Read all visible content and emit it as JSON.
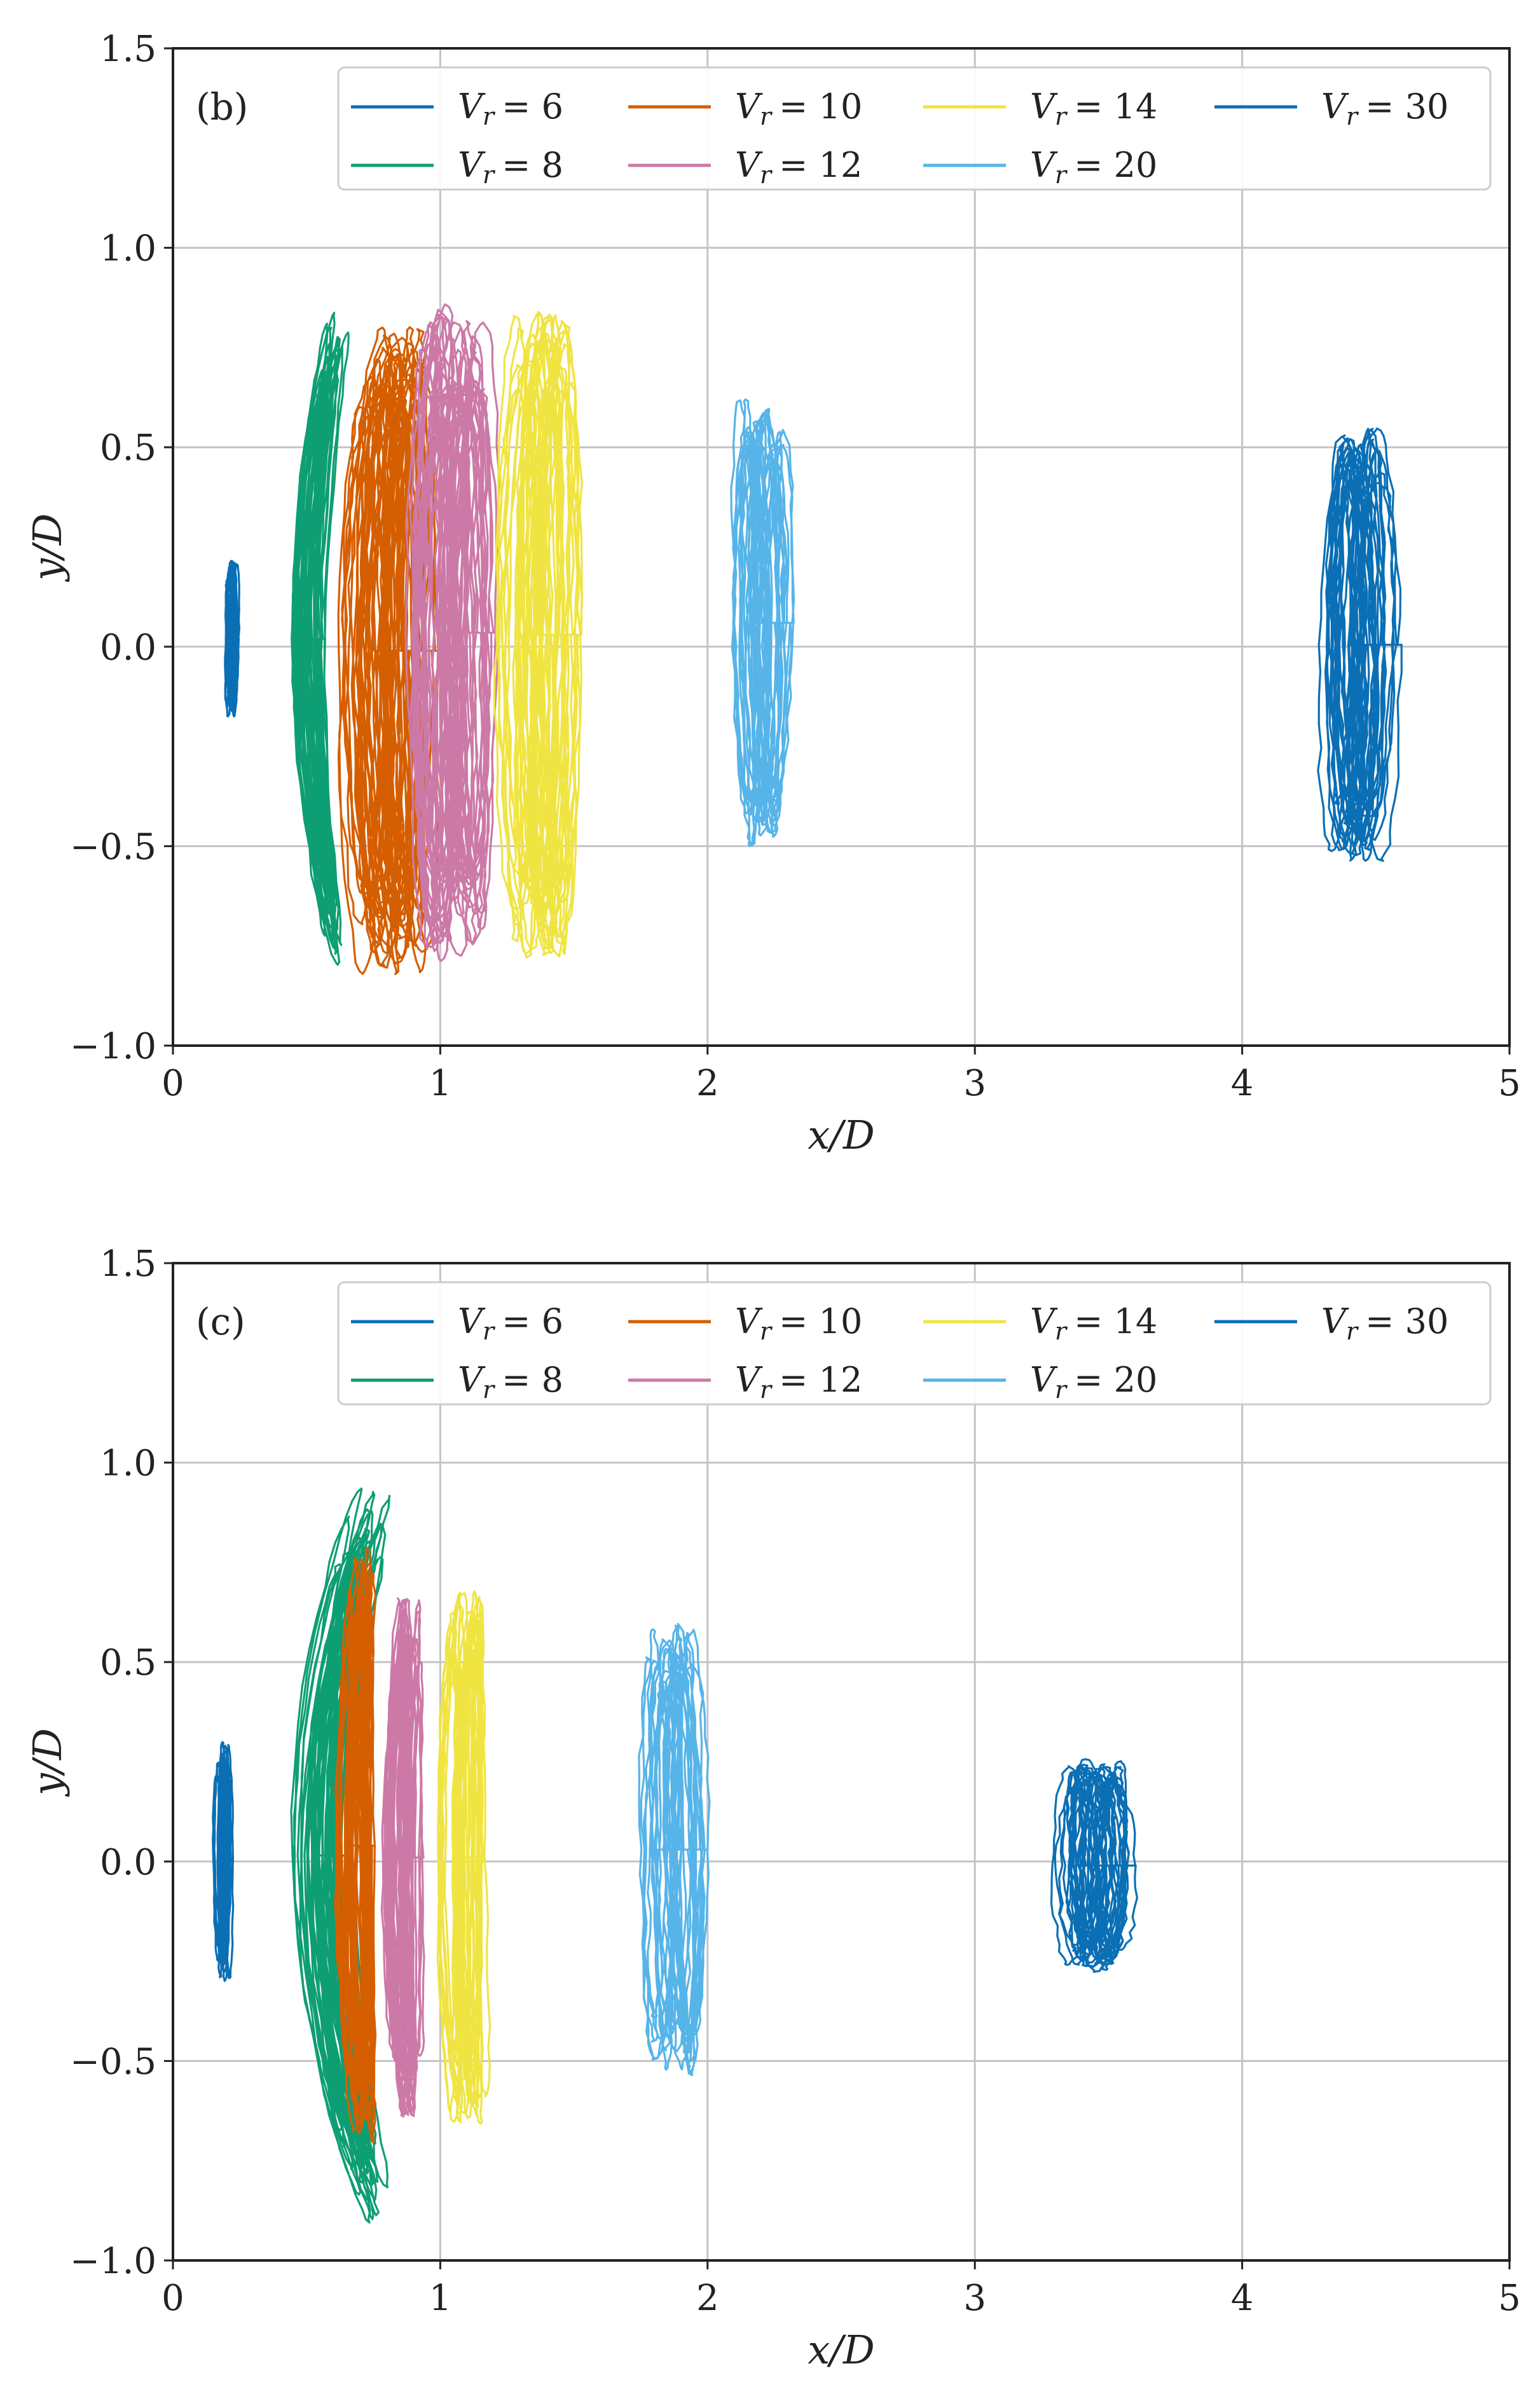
{
  "chart_data": [
    {
      "type": "line",
      "panel_label": "(b)",
      "xlabel": "x/D",
      "ylabel": "y/D",
      "xlim": [
        0,
        5
      ],
      "ylim": [
        -1.0,
        1.5
      ],
      "xticks": [
        "0",
        "1",
        "2",
        "3",
        "4",
        "5"
      ],
      "yticks": [
        "−1.0",
        "−0.5",
        "0.0",
        "0.5",
        "1.0",
        "1.5"
      ],
      "grid": true,
      "legend_position": "top-right, 4 columns",
      "series": [
        {
          "name": "V_r = 6",
          "label": "= 6",
          "color": "#0a6fb5",
          "x_center": 0.22,
          "x_halfwidth": 0.02,
          "y_min": -0.18,
          "y_max": 0.22,
          "curvature": 0.0,
          "loops": 16
        },
        {
          "name": "V_r = 8",
          "label": "= 8",
          "color": "#0e9e73",
          "x_center": 0.5,
          "x_halfwidth": 0.06,
          "y_min": -0.8,
          "y_max": 0.84,
          "curvature": 0.12,
          "loops": 22
        },
        {
          "name": "V_r = 10",
          "label": "= 10",
          "color": "#d55e00",
          "x_center": 0.79,
          "x_halfwidth": 0.14,
          "y_min": -0.83,
          "y_max": 0.81,
          "curvature": 0.03,
          "loops": 40
        },
        {
          "name": "V_r = 12",
          "label": "= 12",
          "color": "#cc79a7",
          "x_center": 1.04,
          "x_halfwidth": 0.13,
          "y_min": -0.79,
          "y_max": 0.86,
          "curvature": 0.02,
          "loops": 40
        },
        {
          "name": "V_r = 14",
          "label": "= 14",
          "color": "#f0e442",
          "x_center": 1.36,
          "x_halfwidth": 0.12,
          "y_min": -0.79,
          "y_max": 0.85,
          "curvature": 0.02,
          "loops": 34
        },
        {
          "name": "V_r = 20",
          "label": "= 20",
          "color": "#56b4e9",
          "x_center": 2.2,
          "x_halfwidth": 0.09,
          "y_min": -0.5,
          "y_max": 0.62,
          "curvature": 0.0,
          "loops": 26
        },
        {
          "name": "V_r = 30",
          "label": "= 30",
          "color": "#0a6fb5",
          "x_center": 4.44,
          "x_halfwidth": 0.11,
          "y_min": -0.54,
          "y_max": 0.55,
          "curvature": 0.0,
          "loops": 30
        }
      ]
    },
    {
      "type": "line",
      "panel_label": "(c)",
      "xlabel": "x/D",
      "ylabel": "y/D",
      "xlim": [
        0,
        5
      ],
      "ylim": [
        -1.0,
        1.5
      ],
      "xticks": [
        "0",
        "1",
        "2",
        "3",
        "4",
        "5"
      ],
      "yticks": [
        "−1.0",
        "−0.5",
        "0.0",
        "0.5",
        "1.0",
        "1.5"
      ],
      "grid": true,
      "legend_position": "top-right, 4 columns",
      "series": [
        {
          "name": "V_r = 6",
          "label": "= 6",
          "color": "#0a6fb5",
          "x_center": 0.19,
          "x_halfwidth": 0.03,
          "y_min": -0.3,
          "y_max": 0.3,
          "curvature": 0.0,
          "loops": 16
        },
        {
          "name": "V_r = 8",
          "label": "= 8",
          "color": "#0e9e73",
          "x_center": 0.55,
          "x_halfwidth": 0.09,
          "y_min": -0.91,
          "y_max": 0.94,
          "curvature": 0.22,
          "loops": 28
        },
        {
          "name": "V_r = 10",
          "label": "= 10",
          "color": "#d55e00",
          "x_center": 0.68,
          "x_halfwidth": 0.06,
          "y_min": -0.72,
          "y_max": 0.8,
          "curvature": 0.04,
          "loops": 28
        },
        {
          "name": "V_r = 12",
          "label": "= 12",
          "color": "#cc79a7",
          "x_center": 0.86,
          "x_halfwidth": 0.06,
          "y_min": -0.64,
          "y_max": 0.66,
          "curvature": 0.03,
          "loops": 28
        },
        {
          "name": "V_r = 14",
          "label": "= 14",
          "color": "#f0e442",
          "x_center": 1.08,
          "x_halfwidth": 0.07,
          "y_min": -0.66,
          "y_max": 0.68,
          "curvature": 0.03,
          "loops": 26
        },
        {
          "name": "V_r = 20",
          "label": "= 20",
          "color": "#56b4e9",
          "x_center": 1.86,
          "x_halfwidth": 0.1,
          "y_min": -0.54,
          "y_max": 0.6,
          "curvature": 0.0,
          "loops": 24
        },
        {
          "name": "V_r = 30",
          "label": "= 30",
          "color": "#0a6fb5",
          "x_center": 3.44,
          "x_halfwidth": 0.12,
          "y_min": -0.28,
          "y_max": 0.26,
          "curvature": 0.0,
          "loops": 30
        }
      ]
    }
  ]
}
